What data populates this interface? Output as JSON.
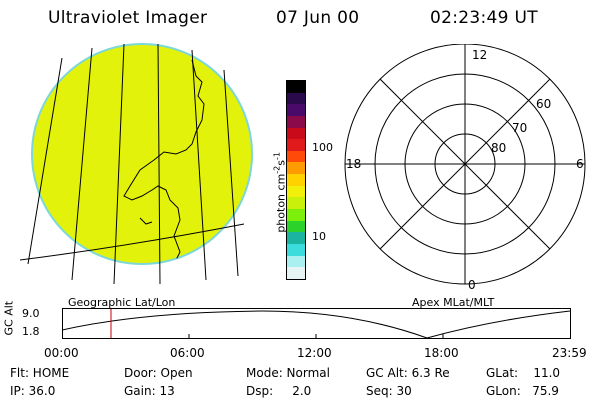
{
  "header": {
    "instrument": "Ultraviolet Imager",
    "date": "07 Jun 00",
    "time": "02:23:49 UT"
  },
  "left_panel": {
    "caption": "Geographic Lat/Lon",
    "disk_color": "#e3f20a"
  },
  "colorbar": {
    "unit_prefix": "photon cm",
    "unit_exp1": "-2",
    "unit_mid": "s",
    "unit_exp2": "-1",
    "tick_100": "100",
    "tick_10": "10",
    "colors": [
      "#000000",
      "#2a0a4a",
      "#4a0a6a",
      "#8a0a4a",
      "#c80a1a",
      "#e01a1a",
      "#ff4a0a",
      "#ff9a00",
      "#ffd200",
      "#f0f00a",
      "#c8f00a",
      "#7cf00a",
      "#2ad22a",
      "#1ab4a0",
      "#3cdcdc",
      "#aaf0f0",
      "#e6f4f4"
    ]
  },
  "polar": {
    "label_12": "12",
    "label_18": "18",
    "label_6": "6",
    "label_0": "0",
    "label_60": "60",
    "label_70": "70",
    "label_80": "80",
    "caption": "Apex MLat/MLT"
  },
  "altitude_plot": {
    "ylabel": "GC Alt",
    "y_top": "9.0",
    "y_bottom": "1.8",
    "ticks": [
      "00:00",
      "06:00",
      "12:00",
      "18:00",
      "23:59"
    ],
    "marker_color": "#cc0000"
  },
  "info": {
    "flt": "Flt: HOME",
    "ip": "IP: 36.0",
    "door": "Door: Open",
    "gain": "Gain: 13",
    "mode": "Mode: Normal",
    "dsp": "Dsp:     2.0",
    "gcalt": "GC Alt: 6.3 Re",
    "seq": "Seq: 30",
    "glat": "GLat:    11.0",
    "glon": "GLon:   75.9"
  }
}
